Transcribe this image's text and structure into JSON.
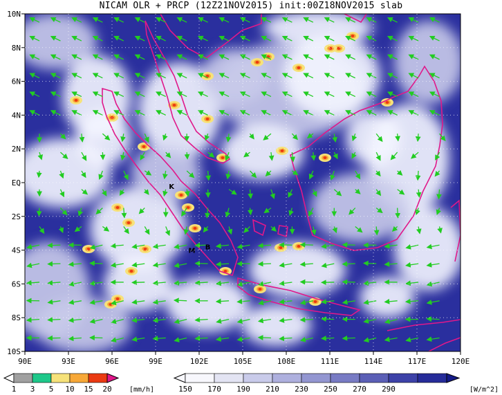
{
  "title": "NICAM OLR + PRCP (12Z21NOV2015) init:00Z18NOV2015 slab",
  "map": {
    "lon_range": [
      90,
      120
    ],
    "lat_range": [
      -10,
      10
    ],
    "lon_ticks": [
      "90E",
      "93E",
      "96E",
      "99E",
      "102E",
      "105E",
      "108E",
      "111E",
      "114E",
      "117E",
      "120E"
    ],
    "lat_ticks": [
      "10N",
      "8N",
      "6N",
      "4N",
      "2N",
      "EQ",
      "2S",
      "4S",
      "6S",
      "8S",
      "10S"
    ],
    "colors": {
      "ocean": "#2a2f9e",
      "coast": "#e0188a",
      "wind": "#22cc22",
      "cloud": "#f4f6ff"
    },
    "stations": [
      {
        "label": "K",
        "lon": 100.1,
        "lat": -0.2
      },
      {
        "label": "M",
        "lon": 101.5,
        "lat": -4.0
      },
      {
        "label": "B",
        "lon": 102.6,
        "lat": -3.8
      }
    ]
  },
  "prcp_legend": {
    "levels": [
      "1",
      "3",
      "5",
      "10",
      "15",
      "20"
    ],
    "unit": "[mm/h]",
    "colors": [
      "#a0a0a0",
      "#1ec88a",
      "#f6e27a",
      "#f7a838",
      "#ea3a12",
      "#e0188a"
    ]
  },
  "olr_legend": {
    "levels": [
      "150",
      "170",
      "190",
      "210",
      "230",
      "250",
      "270",
      "290"
    ],
    "unit": "[W/m^2]",
    "colors": [
      "#f7f7fc",
      "#e3e4f3",
      "#c9cbea",
      "#aeb0de",
      "#9396d1",
      "#787bc4",
      "#5b5fb6",
      "#3d42a8",
      "#262c99",
      "#151b88"
    ]
  }
}
